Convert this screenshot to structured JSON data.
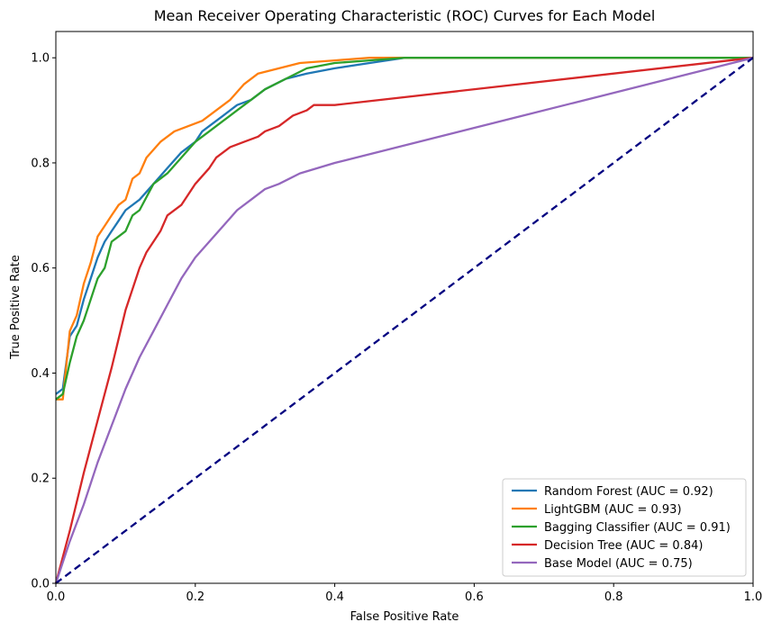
{
  "chart_data": {
    "type": "line",
    "title": "Mean Receiver Operating Characteristic (ROC) Curves for Each Model",
    "xlabel": "False Positive Rate",
    "ylabel": "True Positive Rate",
    "xlim": [
      0.0,
      1.0
    ],
    "ylim": [
      0.0,
      1.05
    ],
    "xticks": [
      "0.0",
      "0.2",
      "0.4",
      "0.6",
      "0.8",
      "1.0"
    ],
    "yticks": [
      "0.0",
      "0.2",
      "0.4",
      "0.6",
      "0.8",
      "1.0"
    ],
    "grid": false,
    "legend_position": "bottom-right",
    "reference_line": {
      "x": [
        0.0,
        1.0
      ],
      "y": [
        0.0,
        1.0
      ],
      "color": "#000080",
      "style": "dashed"
    },
    "series": [
      {
        "name": "Random Forest (AUC = 0.92)",
        "color": "#1f77b4",
        "x": [
          0.0,
          0.01,
          0.02,
          0.03,
          0.04,
          0.05,
          0.06,
          0.07,
          0.08,
          0.09,
          0.1,
          0.12,
          0.14,
          0.16,
          0.18,
          0.2,
          0.21,
          0.22,
          0.24,
          0.26,
          0.28,
          0.3,
          0.33,
          0.36,
          0.4,
          0.45,
          0.5,
          0.6,
          1.0
        ],
        "y": [
          0.36,
          0.37,
          0.47,
          0.49,
          0.54,
          0.58,
          0.62,
          0.65,
          0.67,
          0.69,
          0.71,
          0.73,
          0.76,
          0.79,
          0.82,
          0.84,
          0.86,
          0.87,
          0.89,
          0.91,
          0.92,
          0.94,
          0.96,
          0.97,
          0.98,
          0.99,
          1.0,
          1.0,
          1.0
        ]
      },
      {
        "name": "LightGBM (AUC = 0.93)",
        "color": "#ff7f0e",
        "x": [
          0.0,
          0.01,
          0.02,
          0.03,
          0.04,
          0.05,
          0.06,
          0.07,
          0.08,
          0.09,
          0.1,
          0.11,
          0.12,
          0.13,
          0.15,
          0.17,
          0.19,
          0.21,
          0.23,
          0.25,
          0.27,
          0.29,
          0.32,
          0.35,
          0.4,
          0.45,
          0.5,
          0.6,
          1.0
        ],
        "y": [
          0.35,
          0.35,
          0.48,
          0.51,
          0.57,
          0.61,
          0.66,
          0.68,
          0.7,
          0.72,
          0.73,
          0.77,
          0.78,
          0.81,
          0.84,
          0.86,
          0.87,
          0.88,
          0.9,
          0.92,
          0.95,
          0.97,
          0.98,
          0.99,
          0.995,
          1.0,
          1.0,
          1.0,
          1.0
        ]
      },
      {
        "name": "Bagging Classifier (AUC = 0.91)",
        "color": "#2ca02c",
        "x": [
          0.0,
          0.01,
          0.02,
          0.03,
          0.04,
          0.05,
          0.06,
          0.07,
          0.08,
          0.09,
          0.1,
          0.11,
          0.12,
          0.14,
          0.16,
          0.18,
          0.2,
          0.22,
          0.24,
          0.26,
          0.28,
          0.3,
          0.33,
          0.36,
          0.4,
          0.45,
          0.5,
          0.6,
          1.0
        ],
        "y": [
          0.35,
          0.36,
          0.42,
          0.47,
          0.5,
          0.54,
          0.58,
          0.6,
          0.65,
          0.66,
          0.67,
          0.7,
          0.71,
          0.76,
          0.78,
          0.81,
          0.84,
          0.86,
          0.88,
          0.9,
          0.92,
          0.94,
          0.96,
          0.98,
          0.99,
          0.995,
          1.0,
          1.0,
          1.0
        ]
      },
      {
        "name": "Decision Tree (AUC = 0.84)",
        "color": "#d62728",
        "x": [
          0.0,
          0.02,
          0.04,
          0.06,
          0.08,
          0.1,
          0.12,
          0.13,
          0.15,
          0.16,
          0.18,
          0.2,
          0.22,
          0.23,
          0.25,
          0.27,
          0.29,
          0.3,
          0.32,
          0.34,
          0.36,
          0.37,
          0.4,
          1.0
        ],
        "y": [
          0.0,
          0.1,
          0.21,
          0.31,
          0.41,
          0.52,
          0.6,
          0.63,
          0.67,
          0.7,
          0.72,
          0.76,
          0.79,
          0.81,
          0.83,
          0.84,
          0.85,
          0.86,
          0.87,
          0.89,
          0.9,
          0.91,
          0.91,
          1.0
        ]
      },
      {
        "name": "Base Model (AUC = 0.75)",
        "color": "#9467bd",
        "x": [
          0.0,
          0.02,
          0.04,
          0.06,
          0.08,
          0.1,
          0.12,
          0.14,
          0.16,
          0.18,
          0.2,
          0.22,
          0.24,
          0.26,
          0.28,
          0.3,
          0.32,
          0.35,
          0.4,
          1.0
        ],
        "y": [
          0.0,
          0.08,
          0.15,
          0.23,
          0.3,
          0.37,
          0.43,
          0.48,
          0.53,
          0.58,
          0.62,
          0.65,
          0.68,
          0.71,
          0.73,
          0.75,
          0.76,
          0.78,
          0.8,
          1.0
        ]
      }
    ]
  }
}
